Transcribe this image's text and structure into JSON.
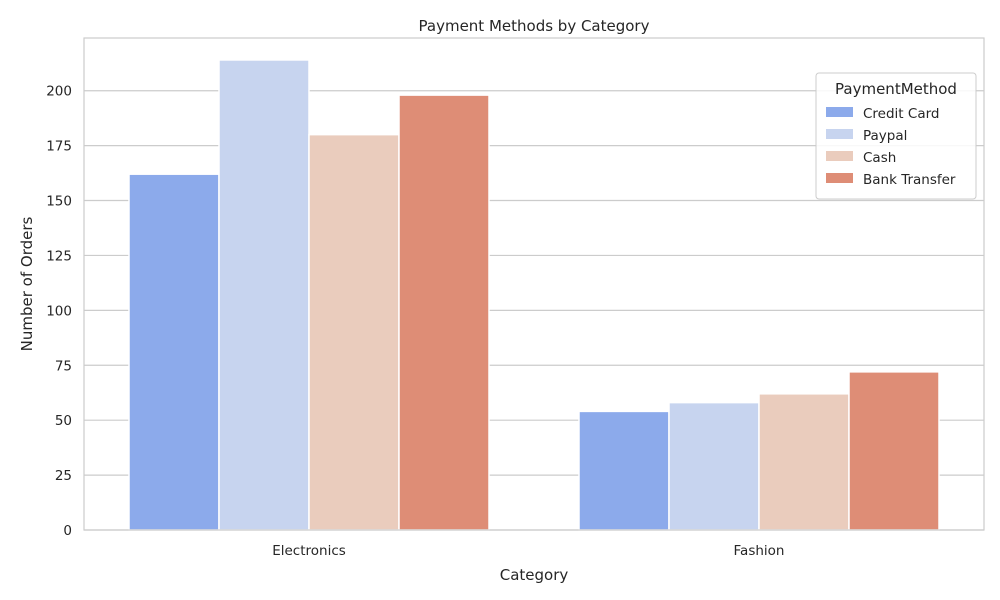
{
  "chart_data": {
    "type": "bar",
    "title": "Payment Methods by Category",
    "xlabel": "Category",
    "ylabel": "Number of Orders",
    "categories": [
      "Electronics",
      "Fashion"
    ],
    "series": [
      {
        "name": "Credit Card",
        "values": [
          162,
          54
        ],
        "color": "#8caaeb"
      },
      {
        "name": "Paypal",
        "values": [
          214,
          58
        ],
        "color": "#c7d4ef"
      },
      {
        "name": "Cash",
        "values": [
          180,
          62
        ],
        "color": "#eaccbd"
      },
      {
        "name": "Bank Transfer",
        "values": [
          198,
          72
        ],
        "color": "#de8d76"
      }
    ],
    "ylim": [
      0,
      224
    ],
    "yticks": [
      0,
      25,
      50,
      75,
      100,
      125,
      150,
      175,
      200
    ],
    "grid": true,
    "legend": {
      "title": "PaymentMethod",
      "placement": "top-right"
    }
  }
}
